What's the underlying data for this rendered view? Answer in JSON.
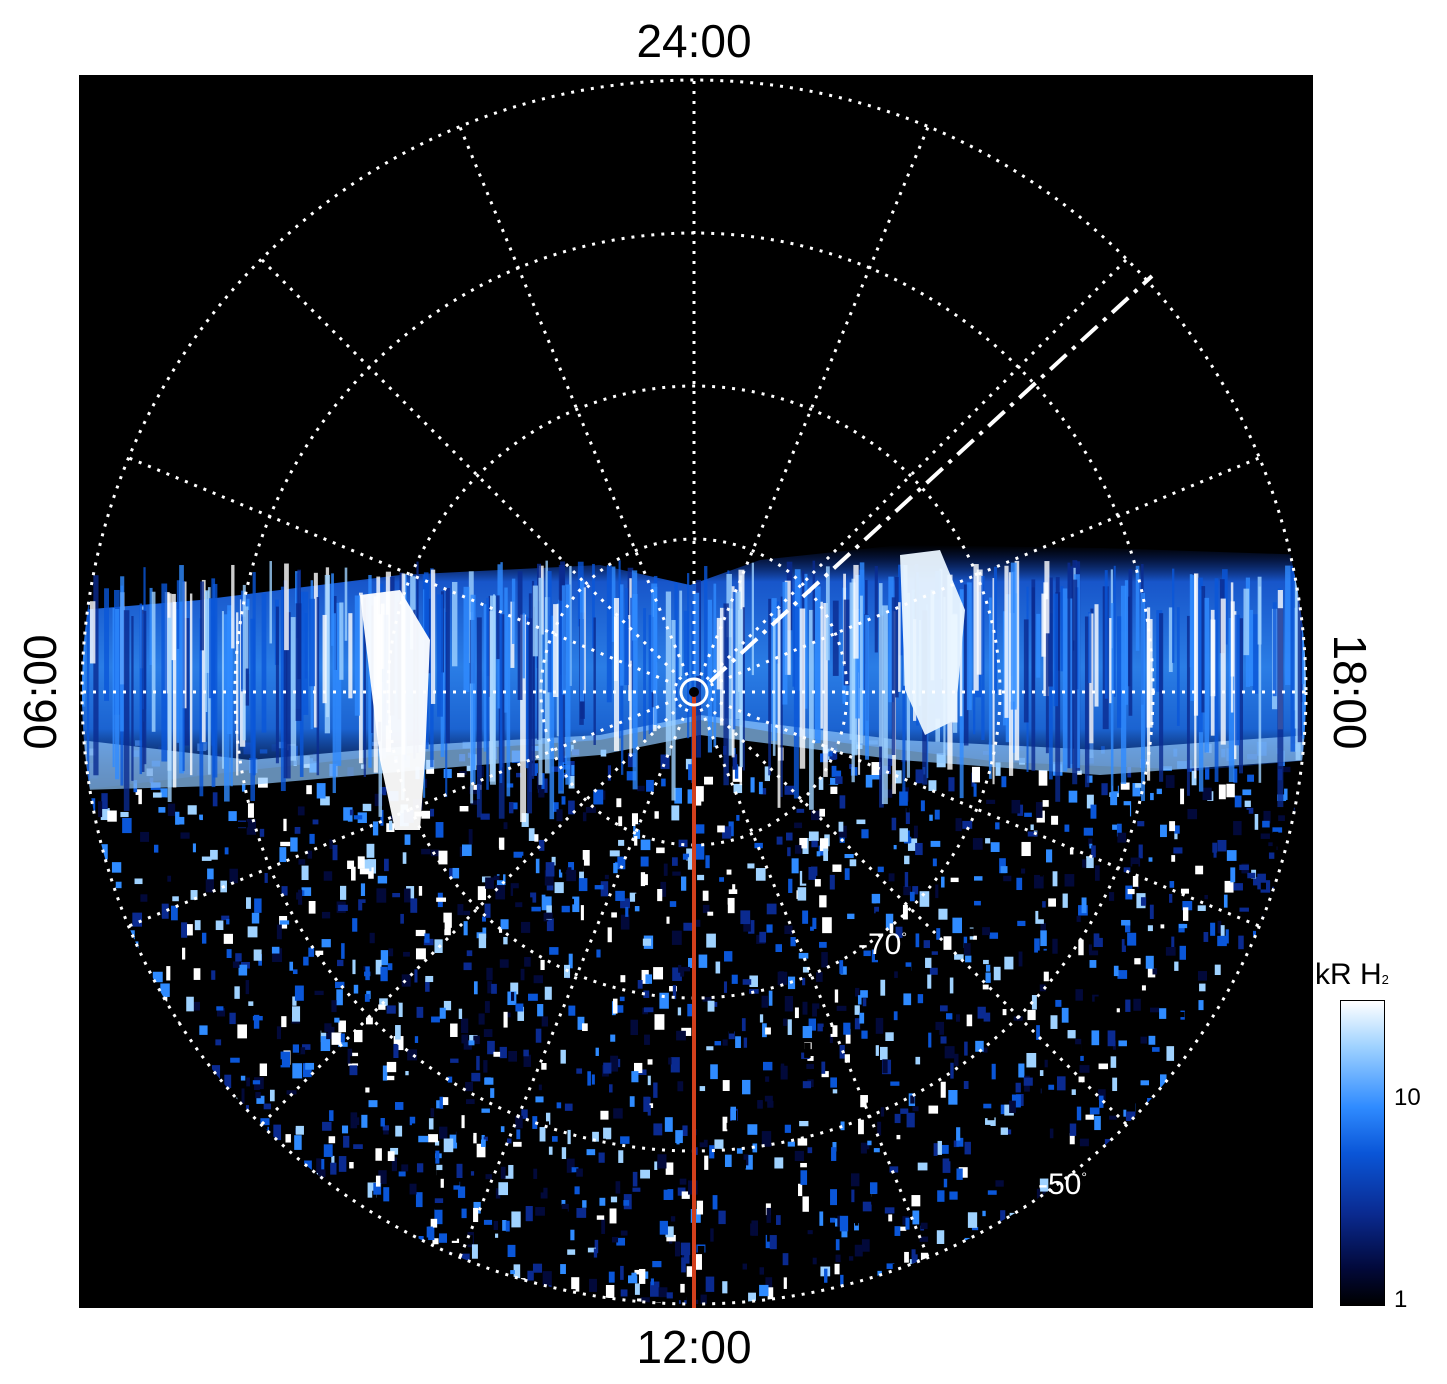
{
  "local_time_labels": {
    "top": "24:00",
    "bottom": "12:00",
    "left": "06:00",
    "right": "18:00"
  },
  "latitude_labels": {
    "lat_70": "-70",
    "lat_50": "-50",
    "degree_symbol": "°"
  },
  "colorbar": {
    "title_main": "kR H",
    "title_sub": "2",
    "ticks": [
      "10",
      "1"
    ],
    "scale": "log",
    "colors": [
      "#000000",
      "#02093a",
      "#0a2a90",
      "#0a56d8",
      "#2f8bff",
      "#9fd2ff",
      "#ffffff"
    ]
  },
  "colors": {
    "background": "#000000",
    "grid": "#ffffff",
    "meridian_line": "#d2401c"
  }
}
